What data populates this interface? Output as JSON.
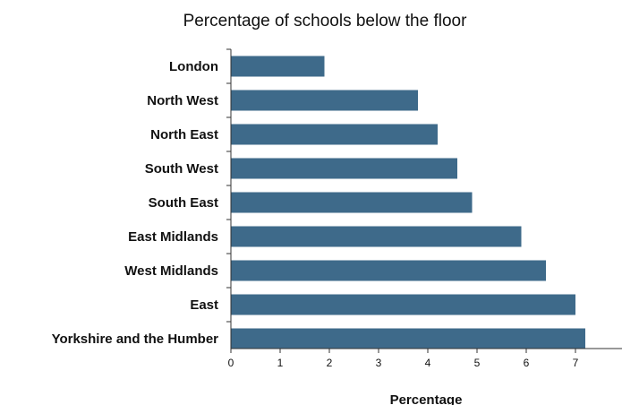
{
  "colors": {
    "bar": "#3e6a8a",
    "axis": "#333333",
    "text": "#111111"
  },
  "chart_data": {
    "type": "bar",
    "orientation": "horizontal",
    "title": "Percentage of schools below the floor",
    "xlabel": "Percentage",
    "ylabel": "",
    "categories": [
      "London",
      "North West",
      "North East",
      "South West",
      "South East",
      "East Midlands",
      "West Midlands",
      "East",
      "Yorkshire and the Humber"
    ],
    "values": [
      1.9,
      3.8,
      4.2,
      4.6,
      4.9,
      5.9,
      6.4,
      7.0,
      7.2
    ],
    "xlim": [
      0,
      8
    ],
    "xticks": [
      "0",
      "1",
      "2",
      "3",
      "4",
      "5",
      "6",
      "7",
      "8"
    ],
    "grid": false,
    "legend": "none"
  }
}
